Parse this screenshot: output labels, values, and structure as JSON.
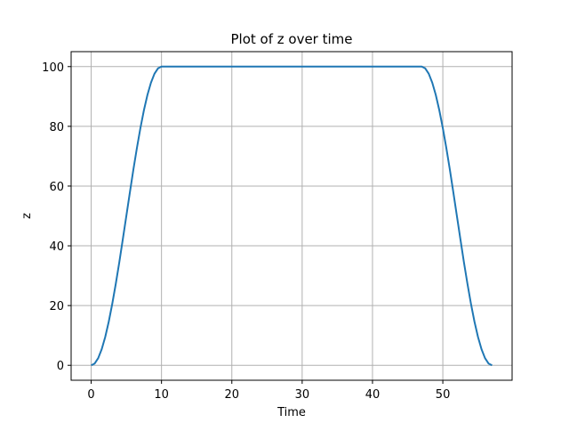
{
  "chart_data": {
    "type": "line",
    "title": "Plot of z over time",
    "xlabel": "Time",
    "ylabel": "z",
    "xlim": [
      -2.85,
      59.85
    ],
    "ylim": [
      -5,
      105
    ],
    "xticks": [
      0,
      10,
      20,
      30,
      40,
      50
    ],
    "yticks": [
      0,
      20,
      40,
      60,
      80,
      100
    ],
    "xtick_labels": [
      "0",
      "10",
      "20",
      "30",
      "40",
      "50"
    ],
    "ytick_labels": [
      "0",
      "20",
      "40",
      "60",
      "80",
      "100"
    ],
    "grid": true,
    "legend": "none",
    "series": [
      {
        "color": "#1f77b4",
        "x": [
          0,
          0.5,
          1,
          1.5,
          2,
          2.5,
          3,
          3.5,
          4,
          4.5,
          5,
          5.5,
          6,
          6.5,
          7,
          7.5,
          8,
          8.5,
          9,
          9.5,
          10,
          15,
          20,
          25,
          30,
          35,
          40,
          45,
          47,
          47.5,
          48,
          48.5,
          49,
          49.5,
          50,
          50.5,
          51,
          51.5,
          52,
          52.5,
          53,
          53.5,
          54,
          54.5,
          55,
          55.5,
          56,
          56.5,
          57
        ],
        "y": [
          0,
          0.6,
          2.4,
          5.4,
          9.5,
          14.6,
          20.6,
          27.3,
          34.5,
          42.2,
          50,
          57.8,
          65.5,
          72.7,
          79.4,
          85.4,
          90.5,
          94.6,
          97.6,
          99.4,
          100,
          100,
          100,
          100,
          100,
          100,
          100,
          100,
          100,
          99.4,
          97.6,
          94.6,
          90.5,
          85.4,
          79.4,
          72.7,
          65.5,
          57.8,
          50,
          42.2,
          34.5,
          27.3,
          20.6,
          14.6,
          9.5,
          5.4,
          2.4,
          0.6,
          0
        ]
      }
    ]
  }
}
